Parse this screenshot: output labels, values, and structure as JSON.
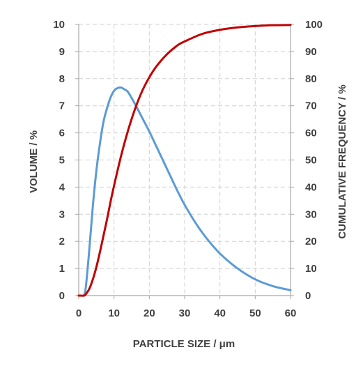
{
  "chart_data": {
    "type": "line",
    "xlabel": "PARTICLE SIZE / μm",
    "ylabel": "VOLUME / %",
    "y2label": "CUMULATIVE FREQUENCY / %",
    "xlim": [
      0,
      60
    ],
    "ylim": [
      0,
      10
    ],
    "y2lim": [
      0,
      100
    ],
    "xticks": [
      0,
      10,
      20,
      30,
      40,
      50,
      60
    ],
    "yticks": [
      0,
      1,
      2,
      3,
      4,
      5,
      6,
      7,
      8,
      9,
      10
    ],
    "y2ticks": [
      0,
      10,
      20,
      30,
      40,
      50,
      60,
      70,
      80,
      90,
      100
    ],
    "grid": true,
    "legend": "none",
    "series": [
      {
        "axis": "left",
        "color": "#5b9bd5",
        "x": [
          1.5,
          2,
          3,
          4,
          5,
          6,
          7,
          8,
          9,
          10,
          11,
          12,
          13,
          14,
          16,
          18,
          20,
          22,
          24,
          26,
          28,
          30,
          33,
          36,
          40,
          45,
          50,
          55,
          60
        ],
        "y": [
          0,
          0.3,
          1.7,
          3.3,
          4.6,
          5.6,
          6.4,
          6.9,
          7.3,
          7.55,
          7.65,
          7.67,
          7.6,
          7.5,
          7.05,
          6.55,
          6.05,
          5.5,
          4.95,
          4.4,
          3.85,
          3.35,
          2.7,
          2.15,
          1.55,
          1.0,
          0.6,
          0.35,
          0.2
        ]
      },
      {
        "axis": "right",
        "color": "#c00000",
        "x": [
          0,
          1.5,
          2,
          3,
          4,
          5,
          6,
          7,
          8,
          9,
          10,
          12,
          14,
          16,
          18,
          20,
          22,
          25,
          28,
          30,
          35,
          40,
          45,
          50,
          55,
          60
        ],
        "y": [
          0,
          0,
          0.5,
          2.5,
          6,
          10.5,
          16,
          22,
          28,
          34.5,
          40.5,
          51.5,
          61,
          69,
          75.5,
          80.5,
          84.5,
          89,
          92.3,
          93.7,
          96.5,
          98,
          98.9,
          99.4,
          99.7,
          99.8
        ]
      }
    ]
  }
}
